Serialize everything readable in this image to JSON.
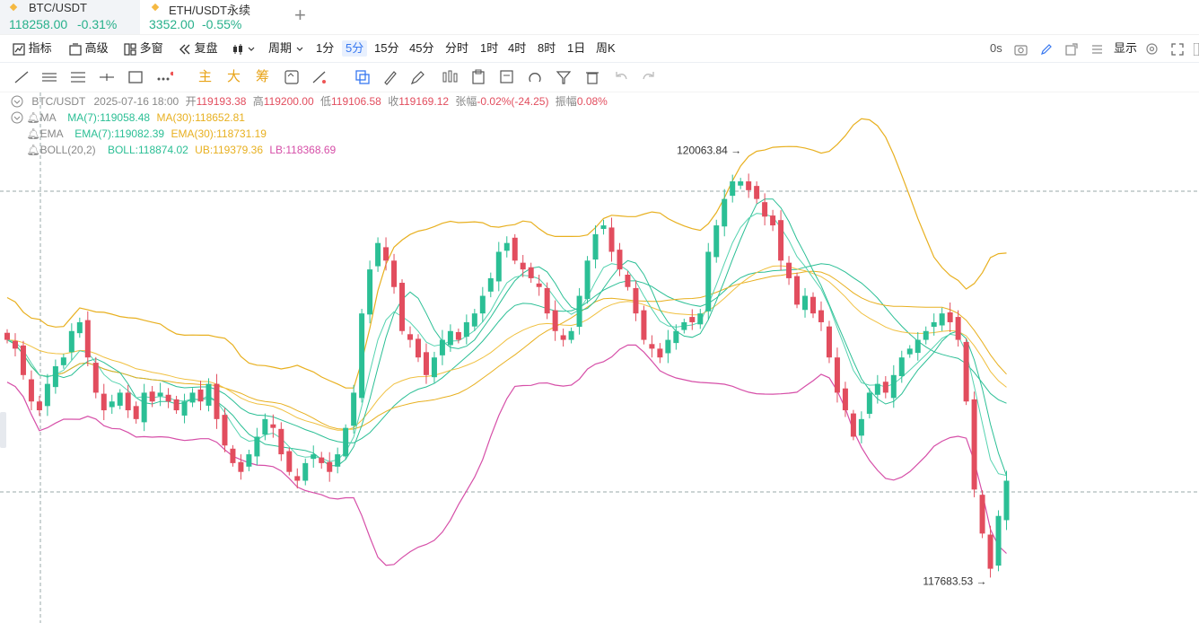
{
  "tabs": [
    {
      "symbol": "BTC/USDT",
      "price": "118258.00",
      "change": "-0.31%",
      "active": true
    },
    {
      "symbol": "ETH/USDT永续",
      "price": "3352.00",
      "change": "-0.55%",
      "active": false
    }
  ],
  "add_tab_label": "+",
  "toolbar": {
    "indicator": "指标",
    "advanced": "高级",
    "multi_window": "多窗",
    "replay": "复盘",
    "period": "周期",
    "intervals": [
      "1分",
      "5分",
      "15分",
      "45分",
      "分时",
      "1时",
      "4时",
      "8时",
      "1日",
      "周K"
    ],
    "selected_interval": "5分",
    "countdown": "0s",
    "display": "显示"
  },
  "draw_tools": {
    "main": "主",
    "big": "大",
    "chips": "筹"
  },
  "legend": {
    "ohlc": {
      "pair": "BTC/USDT",
      "time": "2025-07-16 18:00",
      "open_label": "开",
      "open": "119193.38",
      "high_label": "高",
      "high": "119200.00",
      "low_label": "低",
      "low": "119106.58",
      "close_label": "收",
      "close": "119169.12",
      "change_label": "张幅",
      "change": "-0.02%(-24.25)",
      "amp_label": "振幅",
      "amp": "0.08%"
    },
    "ma": {
      "name": "MA",
      "v1": "MA(7):119058.48",
      "v2": "MA(30):118652.81"
    },
    "ema": {
      "name": "EMA",
      "v1": "EMA(7):119082.39",
      "v2": "EMA(30):118731.19"
    },
    "boll": {
      "name": "BOLL(20,2)",
      "mid": "BOLL:118874.02",
      "ub": "UB:119379.36",
      "lb": "LB:118368.69"
    }
  },
  "chart_data": {
    "type": "candlestick",
    "interval": "5m",
    "high_marker": "120063.84",
    "low_marker": "117683.53",
    "close": [
      119050,
      119000,
      118850,
      118700,
      118650,
      118800,
      118900,
      118950,
      119100,
      119150,
      118950,
      118750,
      118650,
      118700,
      118750,
      118650,
      118600,
      118750,
      118700,
      118750,
      118700,
      118650,
      118700,
      118750,
      118700,
      118800,
      118600,
      118450,
      118350,
      118300,
      118400,
      118500,
      118600,
      118550,
      118400,
      118300,
      118250,
      118350,
      118400,
      118350,
      118300,
      118400,
      118550,
      118750,
      119200,
      119450,
      119600,
      119500,
      119350,
      119100,
      119050,
      118950,
      118850,
      118950,
      119050,
      119100,
      119050,
      119150,
      119200,
      119300,
      119400,
      119550,
      119600,
      119500,
      119450,
      119400,
      119350,
      119200,
      119100,
      119050,
      119100,
      119300,
      119500,
      119650,
      119700,
      119550,
      119450,
      119350,
      119200,
      119050,
      119000,
      118950,
      119050,
      119100,
      119150,
      119150,
      119200,
      119550,
      119700,
      119850,
      119950,
      119950,
      119900,
      119850,
      119750,
      119700,
      119500,
      119400,
      119250,
      119300,
      119200,
      119150,
      118950,
      118750,
      118650,
      118500,
      118600,
      118750,
      118800,
      118750,
      118850,
      118950,
      119000,
      119050,
      119100,
      119150,
      119200,
      119150,
      119050,
      118700,
      118200,
      117950,
      117750,
      118050,
      118250
    ]
  }
}
